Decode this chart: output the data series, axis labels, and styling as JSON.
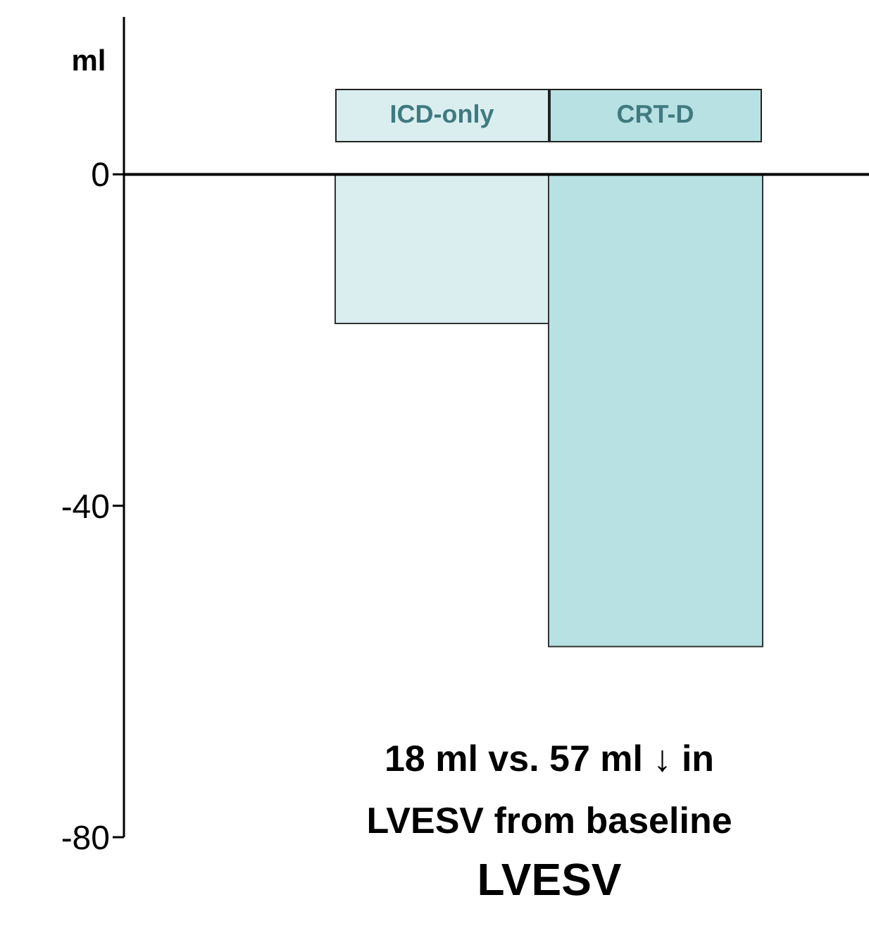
{
  "chart_data": {
    "type": "bar",
    "categories": [
      "ICD-only",
      "CRT-D"
    ],
    "values": [
      -18,
      -57
    ],
    "colors": [
      "#daeef0",
      "#b8e1e3"
    ],
    "ylim": [
      -80,
      19
    ],
    "yticks": [
      -80,
      -40,
      0
    ],
    "ylabel": "ml",
    "xlabel": "LVESV",
    "annotations": [
      "18 ml vs. 57 ml ↓ in LVESV from baseline"
    ]
  }
}
